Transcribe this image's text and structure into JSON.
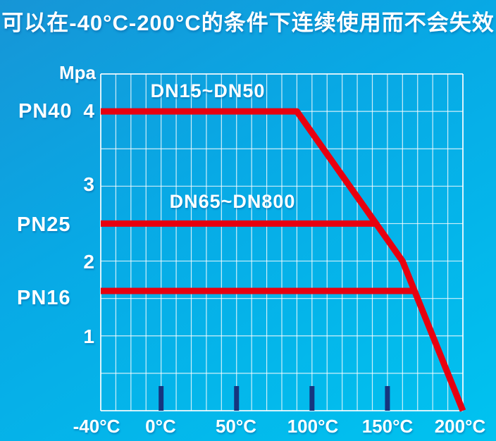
{
  "title": "可以在-40°C-200°C的条件下连续使用而不会失效",
  "chart": {
    "ylabel": "Mpa",
    "left_labels": [
      {
        "text": "PN40",
        "pressure": 4.0
      },
      {
        "text": "PN25",
        "pressure": 2.5
      },
      {
        "text": "PN16",
        "pressure": 1.6
      }
    ],
    "y_ticks": [
      {
        "label": "4",
        "value": 4
      },
      {
        "label": "3",
        "value": 3
      },
      {
        "label": "2",
        "value": 2
      },
      {
        "label": "1",
        "value": 1
      }
    ],
    "x_ticks": [
      {
        "label": "-40°C",
        "value": -40
      },
      {
        "label": "0°C",
        "value": 0
      },
      {
        "label": "50°C",
        "value": 50
      },
      {
        "label": "100°C",
        "value": 100
      },
      {
        "label": "150°C",
        "value": 150
      },
      {
        "label": "200°C",
        "value": 200
      }
    ],
    "tick_bar_temps": [
      0,
      50,
      100,
      150
    ]
  },
  "chart_data": {
    "type": "line",
    "title": "可以在-40°C-200°C的条件下连续使用而不会失效",
    "xlabel": "",
    "ylabel": "Mpa",
    "xlim": [
      -40,
      200
    ],
    "ylim": [
      0,
      4.5
    ],
    "grid": "on",
    "grid_step": {
      "x": 10,
      "y": 0.5
    },
    "x_tick_values": [
      -40,
      0,
      50,
      100,
      150,
      200
    ],
    "y_tick_values": [
      1,
      2,
      3,
      4
    ],
    "legend_position": "inline-labels",
    "series": [
      {
        "name": "DN15~DN50",
        "rating": "PN40",
        "points": [
          [
            -40,
            4.0
          ],
          [
            90,
            4.0
          ],
          [
            160,
            2.0
          ],
          [
            200,
            0.0
          ]
        ]
      },
      {
        "name": "DN65~DN800",
        "rating": "PN25",
        "points": [
          [
            -40,
            2.5
          ],
          [
            142.5,
            2.5
          ]
        ]
      },
      {
        "name": "PN16",
        "rating": "PN16",
        "points": [
          [
            -40,
            1.6
          ],
          [
            168,
            1.6
          ]
        ]
      }
    ],
    "colors": {
      "line": "#e8000f",
      "grid": "#ffffff",
      "tick_bar": "#16357e",
      "background_top": "#1795d6",
      "background_bottom": "#00c3f0",
      "text": "#ffffff"
    }
  }
}
